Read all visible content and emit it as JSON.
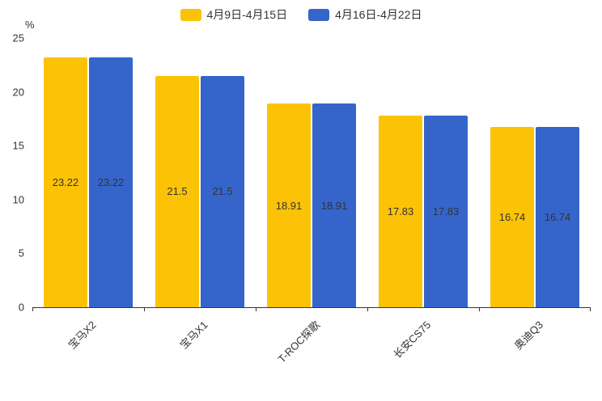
{
  "chart_data": {
    "type": "bar",
    "categories": [
      "宝马X2",
      "宝马X1",
      "T-ROC探歌",
      "长安CS75",
      "奥迪Q3"
    ],
    "series": [
      {
        "name": "4月9日-4月15日",
        "color": "#FCC306",
        "values": [
          23.22,
          21.5,
          18.91,
          17.83,
          16.74
        ]
      },
      {
        "name": "4月16日-4月22日",
        "color": "#3565CB",
        "values": [
          23.22,
          21.5,
          18.91,
          17.83,
          16.74
        ]
      }
    ],
    "title": "",
    "xlabel": "",
    "ylabel": "%",
    "ylim": [
      0,
      25
    ],
    "yticks": [
      0,
      5,
      10,
      15,
      20,
      25
    ],
    "grid": false,
    "legend_position": "top",
    "bar_label_color": "#333333",
    "axis_text_color": "#333333"
  }
}
